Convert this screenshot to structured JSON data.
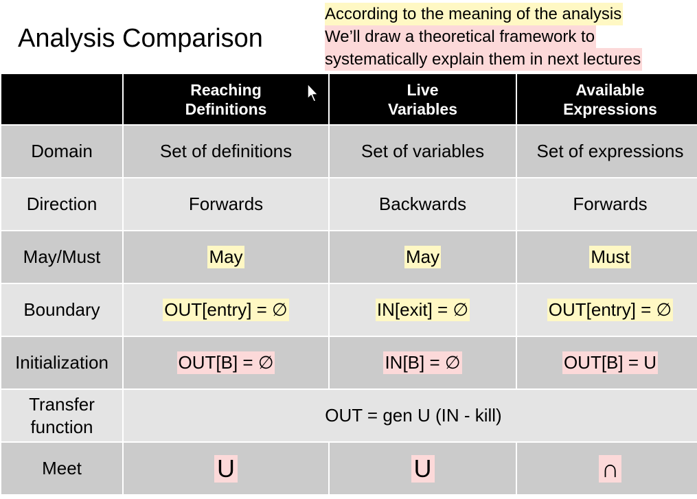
{
  "slide": {
    "title": "Analysis Comparison",
    "note_lines": [
      "According to the meaning of the analysis",
      "We’ll draw a theoretical framework to",
      "systematically explain them in next lectures"
    ]
  },
  "table": {
    "headers": [
      "",
      "Reaching\nDefinitions",
      "Live\nVariables",
      "Available\nExpressions"
    ],
    "rows": [
      {
        "label": "Domain",
        "cells": [
          "Set of definitions",
          "Set of variables",
          "Set of expressions"
        ]
      },
      {
        "label": "Direction",
        "cells": [
          "Forwards",
          "Backwards",
          "Forwards"
        ]
      },
      {
        "label": "May/Must",
        "cells": [
          "May",
          "May",
          "Must"
        ]
      },
      {
        "label": "Boundary",
        "cells": [
          "OUT[entry] = ∅",
          "IN[exit] = ∅",
          "OUT[entry] = ∅"
        ]
      },
      {
        "label": "Initialization",
        "cells": [
          "OUT[B] = ∅",
          "IN[B] = ∅",
          "OUT[B] = U"
        ]
      },
      {
        "label": "Transfer\nfunction",
        "merged": "OUT = gen U (IN - kill)"
      },
      {
        "label": "Meet",
        "cells": [
          "U",
          "U",
          "∩"
        ]
      }
    ]
  },
  "colors": {
    "header_bg": "#000000",
    "row_dark": "#cbcbcb",
    "row_light": "#e4e4e4",
    "highlight_yellow": "#fff8c4",
    "highlight_pink": "#fcd9d9"
  },
  "icons": {
    "cursor": "mouse-pointer-icon"
  }
}
